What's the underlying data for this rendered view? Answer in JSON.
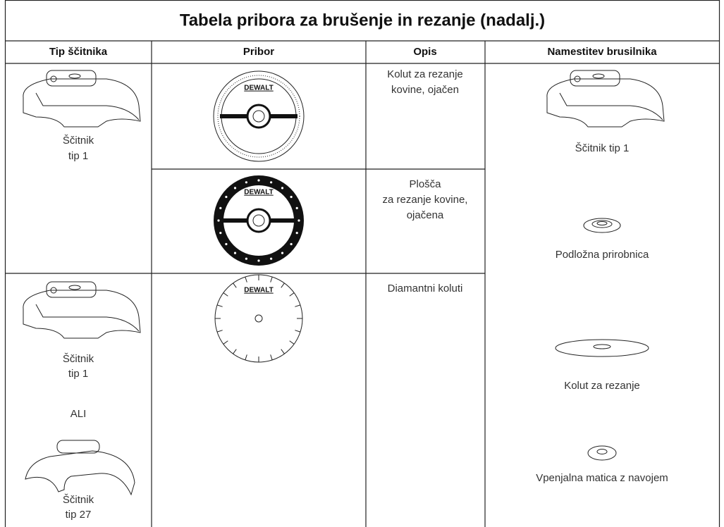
{
  "title": "Tabela pribora za brušenje in rezanje (nadalj.)",
  "headers": [
    "Tip ščitnika",
    "Pribor",
    "Opis",
    "Namestitev brusilnika"
  ],
  "rows": [
    {
      "guard": [
        "Ščitnik",
        "tip 1"
      ],
      "accessory_logo": "DEWALT",
      "description": [
        "Kolut za rezanje",
        "kovine, ojačen"
      ]
    },
    {
      "accessory_logo": "DEWALT",
      "description": [
        "Plošča",
        "za rezanje kovine,",
        "ojačena"
      ]
    },
    {
      "guard": [
        "Ščitnik",
        "tip 1",
        "ALI",
        "Ščitnik",
        "tip 27"
      ],
      "accessory_logo": "DEWALT",
      "description": [
        "Diamantni koluti"
      ]
    }
  ],
  "mounting": [
    "Ščitnik tip 1",
    "Podložna prirobnica",
    "Kolut za rezanje",
    "Vpenjalna matica z navojem"
  ]
}
